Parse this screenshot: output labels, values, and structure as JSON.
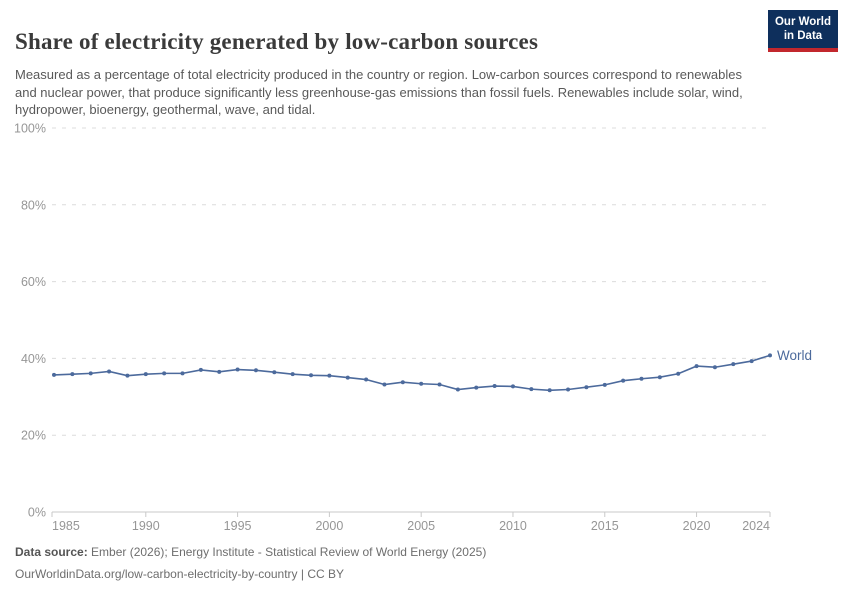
{
  "header": {
    "title": "Share of electricity generated by low-carbon sources",
    "subtitle": "Measured as a percentage of total electricity produced in the country or region. Low-carbon sources correspond to renewables and nuclear power, that produce significantly less greenhouse-gas emissions than fossil fuels. Renewables include solar, wind, hydropower, bioenergy, geothermal, wave, and tidal.",
    "logo": {
      "line1": "Our World",
      "line2": "in Data"
    }
  },
  "chart_data": {
    "type": "line",
    "title": "Share of electricity generated by low-carbon sources",
    "xlabel": "",
    "ylabel": "",
    "xlim": [
      1985,
      2024
    ],
    "ylim": [
      0,
      100
    ],
    "grid": "horizontal dashed",
    "legend_position": "end-of-line label",
    "x_ticks": [
      1985,
      1990,
      1995,
      2000,
      2005,
      2010,
      2015,
      2020,
      2024
    ],
    "y_ticks": [
      0,
      20,
      40,
      60,
      80,
      100
    ],
    "y_tick_labels": [
      "0%",
      "20%",
      "40%",
      "60%",
      "80%",
      "100%"
    ],
    "line_color": "#4C6A9C",
    "series": [
      {
        "name": "World",
        "x": [
          1985,
          1986,
          1987,
          1988,
          1989,
          1990,
          1991,
          1992,
          1993,
          1994,
          1995,
          1996,
          1997,
          1998,
          1999,
          2000,
          2001,
          2002,
          2003,
          2004,
          2005,
          2006,
          2007,
          2008,
          2009,
          2010,
          2011,
          2012,
          2013,
          2014,
          2015,
          2016,
          2017,
          2018,
          2019,
          2020,
          2021,
          2022,
          2023,
          2024
        ],
        "values": [
          35.7,
          35.9,
          36.1,
          36.6,
          35.5,
          35.9,
          36.1,
          36.1,
          37.0,
          36.5,
          37.1,
          36.9,
          36.4,
          35.9,
          35.6,
          35.5,
          35.0,
          34.5,
          33.2,
          33.8,
          33.4,
          33.2,
          31.9,
          32.4,
          32.8,
          32.7,
          32.0,
          31.7,
          31.9,
          32.5,
          33.1,
          34.2,
          34.7,
          35.1,
          36.0,
          38.0,
          37.7,
          38.5,
          39.3,
          40.8
        ]
      }
    ]
  },
  "footer": {
    "source_label": "Data source:",
    "source_text": " Ember (2026); Energy Institute - Statistical Review of World Energy (2025)",
    "link_text": "OurWorldinData.org/low-carbon-electricity-by-country | CC BY"
  },
  "colors": {
    "accent_line": "#4C6A9C",
    "logo_navy": "#0e2f5c",
    "logo_red": "#c2272d",
    "grid": "#dcdcdc",
    "axis": "#c9c9c9",
    "tick_text": "#969696"
  }
}
